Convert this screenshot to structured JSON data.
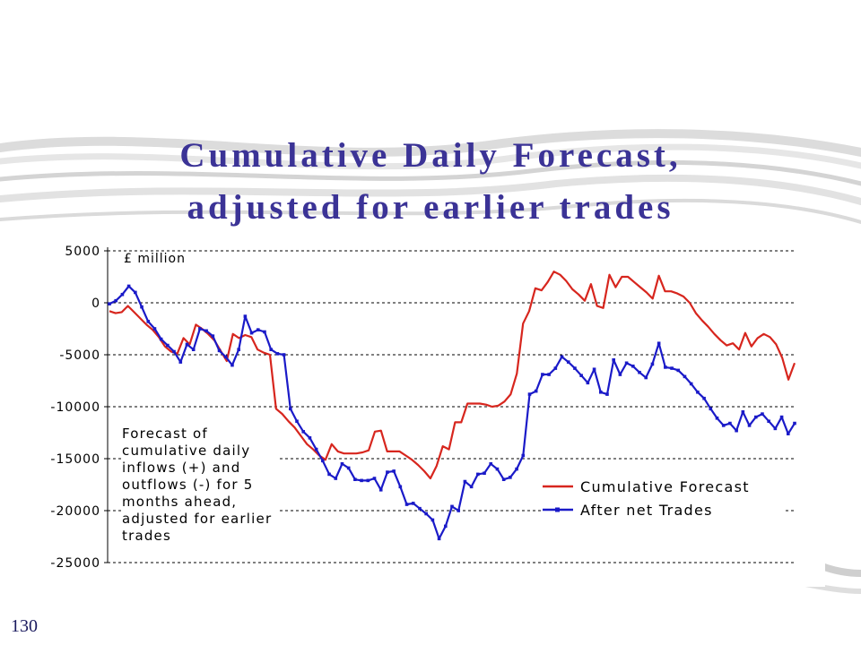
{
  "slide": {
    "title_line1": "Cumulative Daily Forecast,",
    "title_line2": "adjusted for earlier trades",
    "page_number": "130"
  },
  "chart_data": {
    "type": "line",
    "unit_label": "£ million",
    "annotation": "Forecast of cumulative daily inflows (+) and outflows (-) for 5 months ahead, adjusted for earlier trades",
    "ylim": [
      -25000,
      5000
    ],
    "yticks": [
      5000,
      0,
      -5000,
      -10000,
      -15000,
      -20000,
      -25000
    ],
    "ytick_labels": [
      "5000",
      "0",
      "-5000",
      "-10000",
      "-15000",
      "-20000",
      "-25000"
    ],
    "grid": "horizontal-dashed",
    "legend_position": "bottom-right",
    "colors": {
      "forecast": "#d7261e",
      "trades": "#1a1ac8",
      "title": "#3b3396"
    },
    "series": [
      {
        "name": "Cumulative Forecast",
        "color": "#d7261e",
        "values": [
          -800,
          -1000,
          -900,
          -300,
          -900,
          -1500,
          -2100,
          -2600,
          -3300,
          -4200,
          -4700,
          -4900,
          -3400,
          -4000,
          -2100,
          -2500,
          -3000,
          -3600,
          -4600,
          -5600,
          -3000,
          -3400,
          -3100,
          -3300,
          -4500,
          -4800,
          -5000,
          -10200,
          -10700,
          -11400,
          -12000,
          -12800,
          -13600,
          -14100,
          -14700,
          -15100,
          -13600,
          -14300,
          -14500,
          -14500,
          -14500,
          -14400,
          -14200,
          -12400,
          -12300,
          -14300,
          -14300,
          -14300,
          -14700,
          -15100,
          -15600,
          -16200,
          -16900,
          -15700,
          -13800,
          -14100,
          -11500,
          -11500,
          -9700,
          -9700,
          -9700,
          -9800,
          -10000,
          -9900,
          -9500,
          -8800,
          -6800,
          -2000,
          -800,
          1400,
          1200,
          2000,
          3000,
          2700,
          2100,
          1300,
          800,
          200,
          1800,
          -300,
          -500,
          2700,
          1500,
          2500,
          2500,
          2000,
          1500,
          1000,
          400,
          2600,
          1100,
          1100,
          900,
          600,
          0,
          -1000,
          -1700,
          -2300,
          -3000,
          -3600,
          -4100,
          -3900,
          -4500,
          -2900,
          -4200,
          -3400,
          -3000,
          -3300,
          -4000,
          -5300,
          -7400,
          -5800
        ]
      },
      {
        "name": "After net Trades",
        "color": "#1a1ac8",
        "values": [
          -100,
          200,
          800,
          1600,
          1000,
          -400,
          -1800,
          -2500,
          -3500,
          -4100,
          -4700,
          -5700,
          -4000,
          -4500,
          -2500,
          -2700,
          -3200,
          -4600,
          -5200,
          -6000,
          -4500,
          -1300,
          -2900,
          -2600,
          -2800,
          -4500,
          -4900,
          -5000,
          -10200,
          -11400,
          -12400,
          -13000,
          -14100,
          -15200,
          -16500,
          -16900,
          -15500,
          -15900,
          -17000,
          -17100,
          -17100,
          -16900,
          -18000,
          -16300,
          -16200,
          -17700,
          -19400,
          -19300,
          -19800,
          -20300,
          -20900,
          -22700,
          -21500,
          -19600,
          -20000,
          -17200,
          -17700,
          -16500,
          -16400,
          -15500,
          -16000,
          -17000,
          -16800,
          -16000,
          -14700,
          -8800,
          -8500,
          -6900,
          -6900,
          -6300,
          -5200,
          -5700,
          -6300,
          -7000,
          -7700,
          -6400,
          -8600,
          -8800,
          -5500,
          -6900,
          -5800,
          -6100,
          -6700,
          -7200,
          -5900,
          -3900,
          -6200,
          -6300,
          -6500,
          -7100,
          -7800,
          -8600,
          -9200,
          -10200,
          -11100,
          -11800,
          -11600,
          -12300,
          -10500,
          -11800,
          -11000,
          -10700,
          -11400,
          -12100,
          -11000,
          -12600,
          -11600
        ]
      }
    ]
  }
}
